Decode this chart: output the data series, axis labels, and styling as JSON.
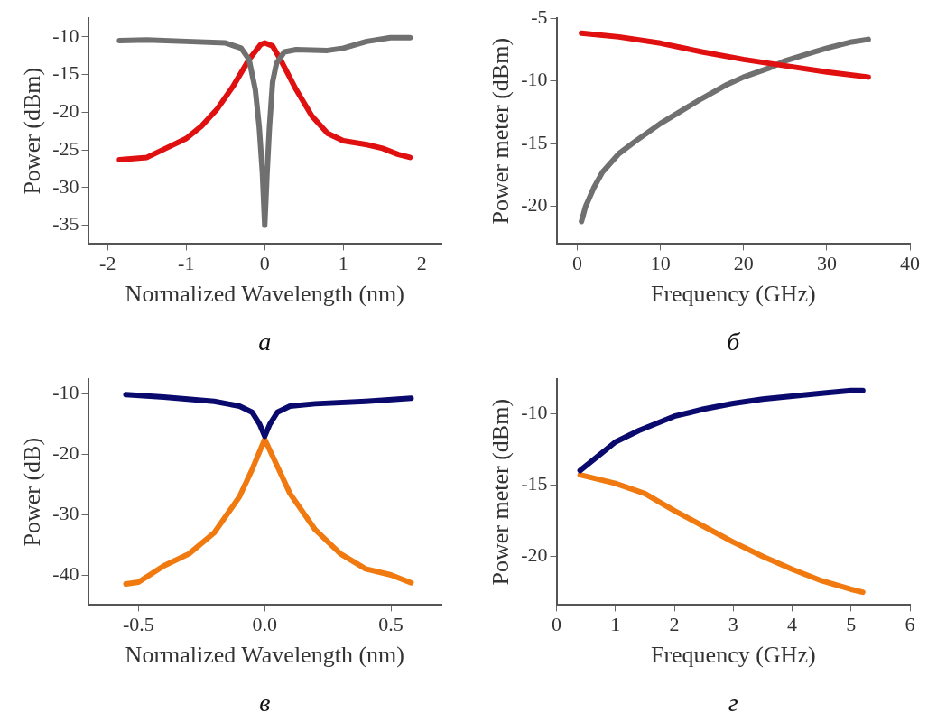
{
  "chart_data": [
    {
      "type": "line",
      "xlabel": "Normalized Wavelength (nm)",
      "ylabel": "Power (dBm)",
      "annotations": [
        "а"
      ],
      "xlim": [
        -2.25,
        2.25
      ],
      "xticks": [
        -2,
        -1,
        0,
        1,
        2
      ],
      "ylim": [
        -37.5,
        -7.5
      ],
      "yticks": [
        -35,
        -30,
        -25,
        -20,
        -15,
        -10
      ],
      "grid": false,
      "legend": false,
      "marker": "none",
      "line_style": "solid",
      "series": [
        {
          "color": "#707070",
          "x": [
            -1.85,
            -1.5,
            -1,
            -0.5,
            -0.3,
            -0.2,
            -0.12,
            -0.07,
            -0.03,
            0,
            0.03,
            0.06,
            0.1,
            0.15,
            0.25,
            0.4,
            0.8,
            1.0,
            1.3,
            1.6,
            1.85
          ],
          "values": [
            -10.5,
            -10.4,
            -10.6,
            -10.8,
            -11.5,
            -13,
            -17,
            -22,
            -28,
            -35,
            -28,
            -22,
            -16,
            -13.5,
            -12,
            -11.7,
            -11.8,
            -11.5,
            -10.6,
            -10.1,
            -10.1
          ]
        },
        {
          "color": "#e01010",
          "x": [
            -1.85,
            -1.5,
            -1.2,
            -1,
            -0.8,
            -0.6,
            -0.4,
            -0.2,
            -0.05,
            0,
            0.1,
            0.2,
            0.4,
            0.6,
            0.8,
            1.0,
            1.3,
            1.5,
            1.7,
            1.85
          ],
          "values": [
            -26.3,
            -26,
            -24.5,
            -23.5,
            -21.8,
            -19.5,
            -16.5,
            -13,
            -11,
            -10.8,
            -11.2,
            -13,
            -17,
            -20.5,
            -22.8,
            -23.8,
            -24.3,
            -24.8,
            -25.6,
            -26
          ]
        }
      ]
    },
    {
      "type": "line",
      "xlabel": "Frequency (GHz)",
      "ylabel": "Power meter (dBm)",
      "annotations": [
        "б"
      ],
      "xlim": [
        -2.5,
        40
      ],
      "xticks": [
        0,
        10,
        20,
        30,
        40
      ],
      "ylim": [
        -23,
        -5
      ],
      "yticks": [
        -20,
        -15,
        -10,
        -5
      ],
      "grid": false,
      "legend": false,
      "marker": "none",
      "line_style": "solid",
      "series": [
        {
          "color": "#e01010",
          "x": [
            0.5,
            5,
            10,
            15,
            20,
            25,
            30,
            35
          ],
          "values": [
            -6.2,
            -6.5,
            -7,
            -7.7,
            -8.3,
            -8.8,
            -9.3,
            -9.7
          ]
        },
        {
          "color": "#707070",
          "x": [
            0.5,
            1,
            2,
            3,
            5,
            7,
            10,
            13,
            15,
            18,
            20,
            23,
            25,
            28,
            30,
            33,
            35
          ],
          "values": [
            -21.2,
            -20,
            -18.5,
            -17.3,
            -15.8,
            -14.8,
            -13.4,
            -12.2,
            -11.4,
            -10.3,
            -9.7,
            -9,
            -8.4,
            -7.8,
            -7.4,
            -6.9,
            -6.7
          ]
        }
      ]
    },
    {
      "type": "line",
      "xlabel": "Normalized Wavelength (nm)",
      "ylabel": "Power (dB)",
      "annotations": [
        "в"
      ],
      "xlim": [
        -0.7,
        0.7
      ],
      "xticks": [
        {
          "value": -0.5,
          "label": "-0.5"
        },
        {
          "value": 0,
          "label": "0.0"
        },
        {
          "value": 0.5,
          "label": "0.5"
        }
      ],
      "ylim": [
        -45,
        -7.5
      ],
      "yticks": [
        -40,
        -30,
        -20,
        -10
      ],
      "grid": false,
      "legend": false,
      "marker": "none",
      "line_style": "solid",
      "series": [
        {
          "color": "#0a0a6e",
          "x": [
            -0.55,
            -0.4,
            -0.2,
            -0.1,
            -0.05,
            -0.02,
            0,
            0.02,
            0.05,
            0.1,
            0.2,
            0.4,
            0.58
          ],
          "values": [
            -10.1,
            -10.5,
            -11.2,
            -12,
            -13,
            -15,
            -17,
            -15,
            -13,
            -12,
            -11.6,
            -11.2,
            -10.7
          ]
        },
        {
          "color": "#f07a10",
          "x": [
            -0.55,
            -0.5,
            -0.4,
            -0.3,
            -0.2,
            -0.1,
            -0.05,
            0,
            0.05,
            0.1,
            0.2,
            0.3,
            0.4,
            0.5,
            0.58
          ],
          "values": [
            -41.5,
            -41.2,
            -38.5,
            -36.5,
            -33,
            -27,
            -22.5,
            -17.5,
            -22,
            -26.5,
            -32.5,
            -36.5,
            -39,
            -40,
            -41.3
          ]
        }
      ]
    },
    {
      "type": "line",
      "xlabel": "Frequency (GHz)",
      "ylabel": "Power meter (dBm)",
      "annotations": [
        "г"
      ],
      "xlim": [
        0,
        6
      ],
      "xticks": [
        0,
        1,
        2,
        3,
        4,
        5,
        6
      ],
      "ylim": [
        -23.4,
        -7.6
      ],
      "yticks": [
        -20,
        -15,
        -10
      ],
      "grid": false,
      "legend": false,
      "marker": "none",
      "line_style": "solid",
      "series": [
        {
          "color": "#0a0a6e",
          "x": [
            0.4,
            0.7,
            1,
            1.4,
            2,
            2.5,
            3,
            3.5,
            4,
            4.5,
            5,
            5.2
          ],
          "values": [
            -14,
            -13,
            -12,
            -11.2,
            -10.2,
            -9.7,
            -9.3,
            -9,
            -8.8,
            -8.6,
            -8.4,
            -8.4
          ]
        },
        {
          "color": "#f07a10",
          "x": [
            0.4,
            0.7,
            1,
            1.5,
            2,
            2.5,
            3,
            3.5,
            4,
            4.5,
            5,
            5.2
          ],
          "values": [
            -14.3,
            -14.6,
            -14.9,
            -15.6,
            -16.8,
            -17.9,
            -19,
            -20,
            -20.9,
            -21.7,
            -22.3,
            -22.5
          ]
        }
      ]
    }
  ]
}
